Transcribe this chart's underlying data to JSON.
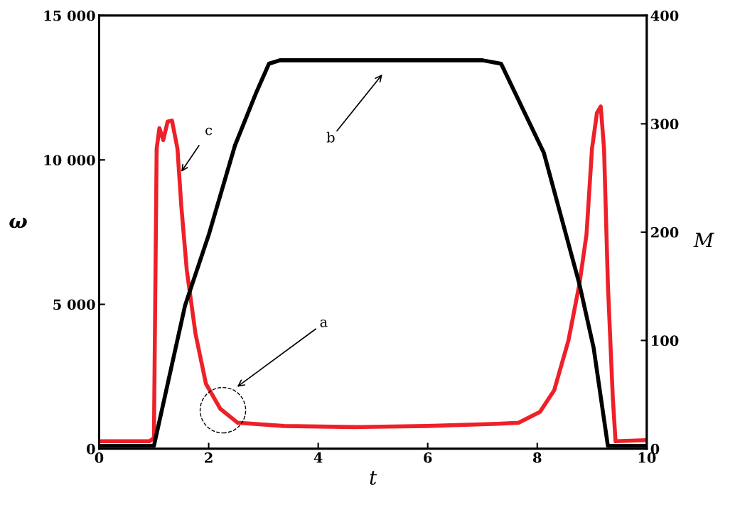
{
  "chart_data": {
    "type": "line",
    "xlabel": "t",
    "ylabel": "ω",
    "y2label": "M",
    "xlim": [
      0,
      10
    ],
    "xticks": [
      0,
      2,
      4,
      6,
      8,
      10
    ],
    "ylim": [
      0,
      15000
    ],
    "yticks": [
      0,
      {
        "value": 5000,
        "label": "5 000"
      },
      {
        "value": 10000,
        "label": "10 000"
      },
      {
        "value": 15000,
        "label": "15 000"
      }
    ],
    "y2lim": [
      0,
      400
    ],
    "y2ticks": [
      0,
      100,
      200,
      300,
      400
    ],
    "grid": false,
    "legend": false,
    "marker": "none",
    "line_style": "solid",
    "series": [
      {
        "color": "#000000",
        "x": [
          0,
          1.0,
          1.57,
          2.0,
          2.48,
          2.87,
          3.1,
          3.3,
          7.0,
          7.34,
          8.12,
          8.77,
          9.03,
          9.29,
          10
        ],
        "values": [
          100,
          100,
          4970,
          7400,
          10500,
          12340,
          13330,
          13450,
          13450,
          13330,
          10250,
          5700,
          3490,
          100,
          100
        ]
      },
      {
        "color": "#ee2028",
        "axis": "y2",
        "x": [
          0,
          0.92,
          1.0,
          1.05,
          1.1,
          1.17,
          1.25,
          1.33,
          1.43,
          1.5,
          1.6,
          1.76,
          1.95,
          2.21,
          2.53,
          3.38,
          4.68,
          5.98,
          7.28,
          7.66,
          8.05,
          8.31,
          8.57,
          8.77,
          8.9,
          9.0,
          9.09,
          9.16,
          9.22,
          9.29,
          9.38,
          9.43,
          10
        ],
        "values": [
          7,
          7,
          10,
          277,
          296,
          285,
          302,
          303,
          277,
          224,
          165,
          106,
          60,
          37,
          24,
          21,
          20,
          21,
          23,
          24,
          34,
          54,
          100,
          152,
          198,
          277,
          310,
          316,
          277,
          152,
          47,
          7,
          8
        ]
      }
    ],
    "annotations": [
      "a",
      "b",
      {
        "text": "c",
        "x": 1.5,
        "y": 9590
      }
    ]
  }
}
